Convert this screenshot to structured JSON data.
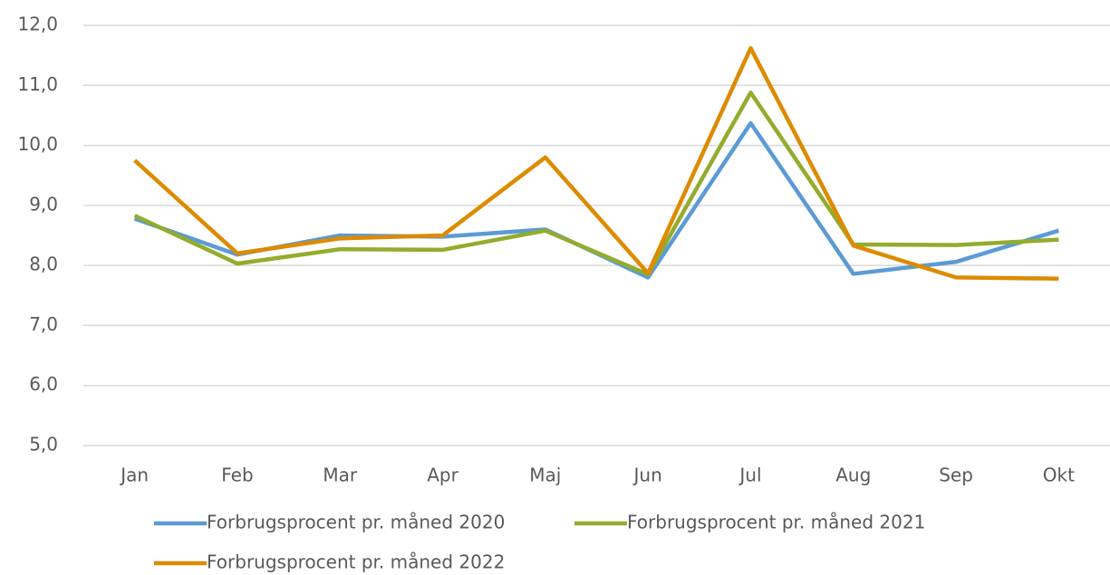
{
  "chart_data": {
    "type": "line",
    "categories": [
      "Jan",
      "Feb",
      "Mar",
      "Apr",
      "Maj",
      "Jun",
      "Jul",
      "Aug",
      "Sep",
      "Okt"
    ],
    "series": [
      {
        "name": "Forbrugsprocent pr. måned 2020",
        "color": "#5b9bd5",
        "values": [
          8.78,
          8.18,
          8.5,
          8.48,
          8.6,
          7.8,
          10.37,
          7.86,
          8.06,
          8.58
        ]
      },
      {
        "name": "Forbrugsprocent pr. måned 2021",
        "color": "#93ac2c",
        "values": [
          8.83,
          8.03,
          8.27,
          8.26,
          8.58,
          7.85,
          10.88,
          8.35,
          8.34,
          8.43
        ]
      },
      {
        "name": "Forbrugsprocent pr. måned 2022",
        "color": "#dd8b00",
        "values": [
          9.75,
          8.2,
          8.45,
          8.5,
          9.8,
          7.87,
          11.62,
          8.33,
          7.8,
          7.78
        ]
      }
    ],
    "ylim": [
      5,
      12
    ],
    "yticks": [
      {
        "value": 5,
        "label": "5,0"
      },
      {
        "value": 6,
        "label": "6,0"
      },
      {
        "value": 7,
        "label": "7,0"
      },
      {
        "value": 8,
        "label": "8,0"
      },
      {
        "value": 9,
        "label": "9,0"
      },
      {
        "value": 10,
        "label": "10,0"
      },
      {
        "value": 11,
        "label": "11,0"
      },
      {
        "value": 12,
        "label": "12,0"
      }
    ],
    "grid": true,
    "legend": "bottom"
  }
}
